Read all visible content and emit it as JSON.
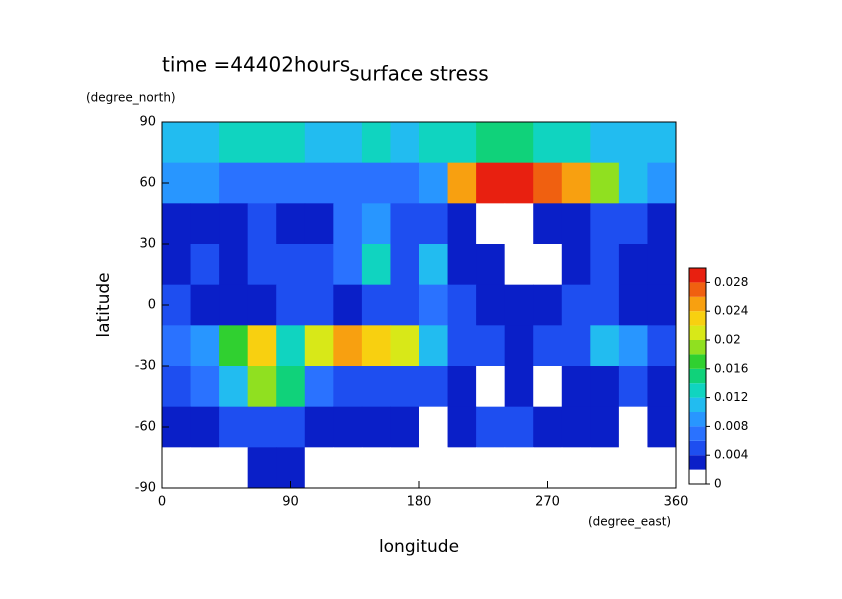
{
  "chart_data": {
    "type": "contour",
    "title": "surface stress",
    "subtitle": "time =44402hours",
    "x_label": "longitude",
    "x_units": "(degree_east)",
    "y_label": "latitude",
    "y_units": "(degree_north)",
    "xlim": [
      0,
      360
    ],
    "xticks": [
      0,
      90,
      180,
      270,
      360
    ],
    "ylim": [
      -90,
      90
    ],
    "yticks": [
      -90,
      -60,
      -30,
      0,
      30,
      60,
      90
    ],
    "lon": [
      10,
      30,
      50,
      70,
      90,
      110,
      130,
      150,
      170,
      190,
      210,
      230,
      250,
      270,
      290,
      310,
      330,
      350
    ],
    "lat": [
      80,
      60,
      40,
      20,
      0,
      -20,
      -40,
      -60,
      -80
    ],
    "values": [
      [
        0.01,
        0.01,
        0.012,
        0.012,
        0.012,
        0.011,
        0.011,
        0.012,
        0.011,
        0.012,
        0.013,
        0.014,
        0.014,
        0.013,
        0.012,
        0.011,
        0.01,
        0.01
      ],
      [
        0.008,
        0.008,
        0.007,
        0.006,
        0.006,
        0.006,
        0.007,
        0.006,
        0.006,
        0.009,
        0.024,
        0.028,
        0.028,
        0.026,
        0.024,
        0.018,
        0.01,
        0.008
      ],
      [
        0.002,
        0.003,
        0.003,
        0.004,
        0.003,
        0.003,
        0.006,
        0.008,
        0.004,
        0.004,
        0.003,
        0.001,
        0.001,
        0.002,
        0.003,
        0.005,
        0.004,
        0.002
      ],
      [
        0.003,
        0.004,
        0.003,
        0.004,
        0.005,
        0.004,
        0.006,
        0.012,
        0.005,
        0.01,
        0.003,
        0.002,
        0.001,
        0.001,
        0.002,
        0.004,
        0.003,
        0.003
      ],
      [
        0.004,
        0.003,
        0.003,
        0.002,
        0.004,
        0.004,
        0.003,
        0.004,
        0.004,
        0.006,
        0.004,
        0.003,
        0.002,
        0.003,
        0.004,
        0.004,
        0.003,
        0.003
      ],
      [
        0.006,
        0.008,
        0.016,
        0.022,
        0.012,
        0.02,
        0.024,
        0.022,
        0.02,
        0.01,
        0.005,
        0.004,
        0.003,
        0.004,
        0.005,
        0.01,
        0.008,
        0.005
      ],
      [
        0.004,
        0.006,
        0.01,
        0.018,
        0.014,
        0.006,
        0.004,
        0.005,
        0.004,
        0.004,
        0.002,
        0.001,
        0.002,
        0.001,
        0.002,
        0.003,
        0.004,
        0.003
      ],
      [
        0.002,
        0.003,
        0.004,
        0.004,
        0.004,
        0.003,
        0.002,
        0.003,
        0.002,
        0.001,
        0.003,
        0.004,
        0.004,
        0.003,
        0.003,
        0.002,
        0.001,
        0.002
      ],
      [
        0,
        0,
        0,
        0.003,
        0.002,
        0,
        0,
        0,
        0,
        0,
        0,
        0,
        0,
        0,
        0,
        0,
        0,
        0
      ]
    ],
    "levels": [
      0,
      0.002,
      0.004,
      0.006,
      0.008,
      0.01,
      0.012,
      0.014,
      0.016,
      0.018,
      0.02,
      0.022,
      0.024,
      0.026,
      0.028
    ],
    "colors": [
      "#ffffff",
      "#0a1fc8",
      "#1e4ef0",
      "#2a72ff",
      "#2896ff",
      "#22bcf0",
      "#10d4c0",
      "#10d27a",
      "#30d030",
      "#90e020",
      "#d8e818",
      "#f8d010",
      "#f8a010",
      "#f06010",
      "#e82010"
    ],
    "clim": [
      0,
      0.03
    ],
    "cbar_ticks": [
      0,
      0.004,
      0.008,
      0.012,
      0.016,
      0.02,
      0.024,
      0.028
    ]
  }
}
